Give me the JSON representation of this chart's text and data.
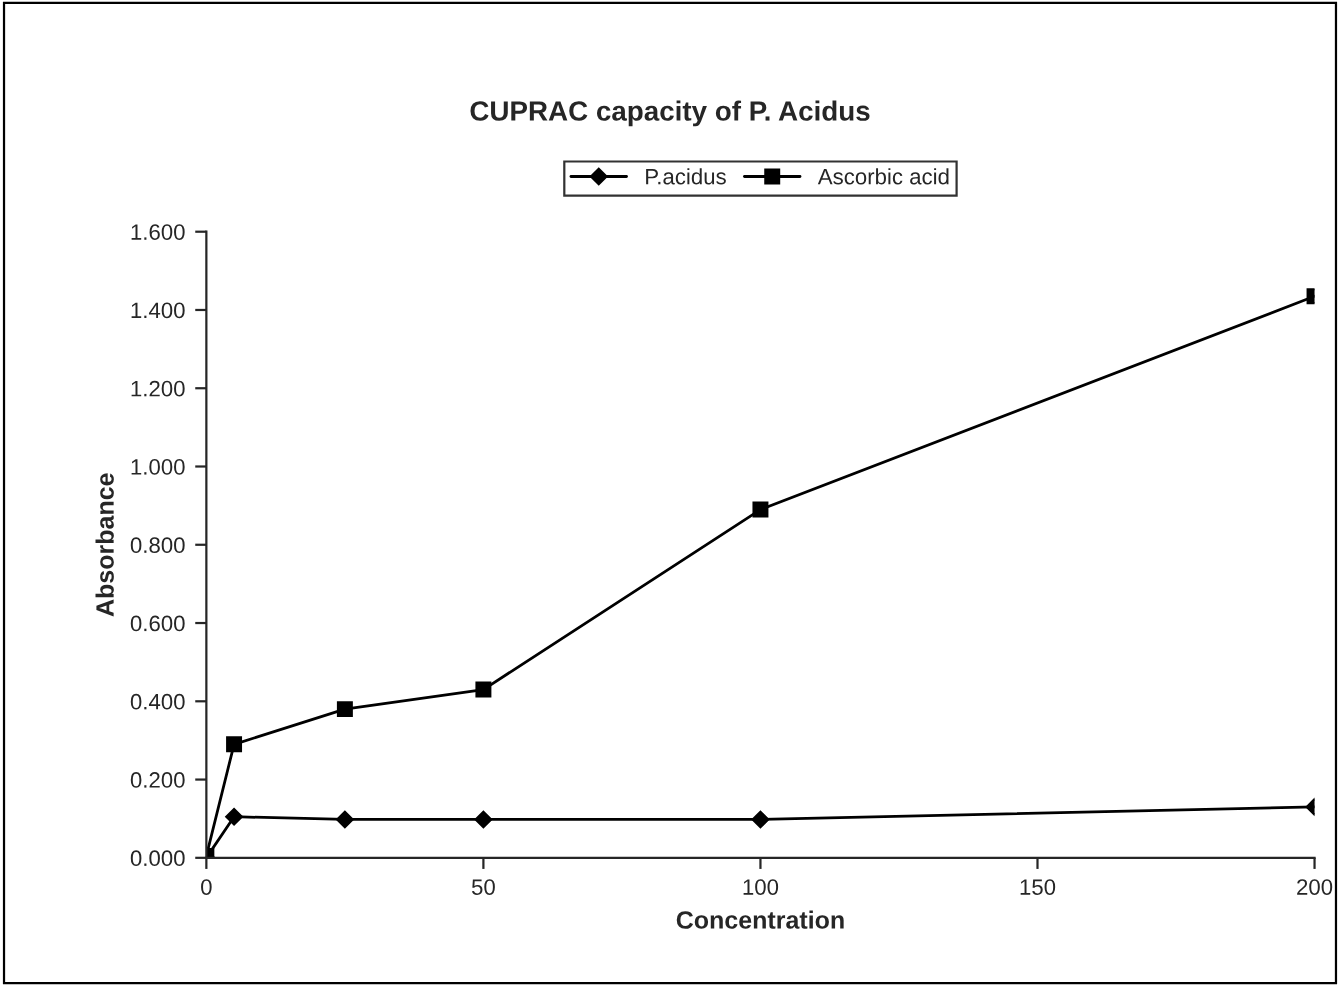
{
  "chart_data": {
    "type": "line",
    "title": "CUPRAC capacity of P. Acidus",
    "xlabel": "Concentration",
    "ylabel": "Absorbance",
    "x": [
      0,
      5,
      25,
      50,
      100,
      200
    ],
    "series": [
      {
        "name": "P.acidus",
        "color": "#000000",
        "marker": "diamond",
        "values": [
          0.0,
          0.105,
          0.098,
          0.098,
          0.098,
          0.13
        ]
      },
      {
        "name": "Ascorbic acid",
        "color": "#000000",
        "marker": "square",
        "values": [
          0.005,
          0.29,
          0.38,
          0.43,
          0.89,
          1.435
        ]
      }
    ],
    "xlim": [
      0,
      200
    ],
    "xticks": [
      0,
      50,
      100,
      150,
      200
    ],
    "ylim": [
      0,
      1.6
    ],
    "yticks": [
      {
        "value": 0,
        "label": "0.000"
      },
      {
        "value": 0.2,
        "label": "0.200"
      },
      {
        "value": 0.4,
        "label": "0.400"
      },
      {
        "value": 0.6,
        "label": "0.600"
      },
      {
        "value": 0.8,
        "label": "0.800"
      },
      {
        "value": 1.0,
        "label": "1.000"
      },
      {
        "value": 1.2,
        "label": "1.200"
      },
      {
        "value": 1.4,
        "label": "1.400"
      },
      {
        "value": 1.6,
        "label": "1.600"
      }
    ],
    "legend": "top",
    "grid": false,
    "line_style": "solid"
  }
}
